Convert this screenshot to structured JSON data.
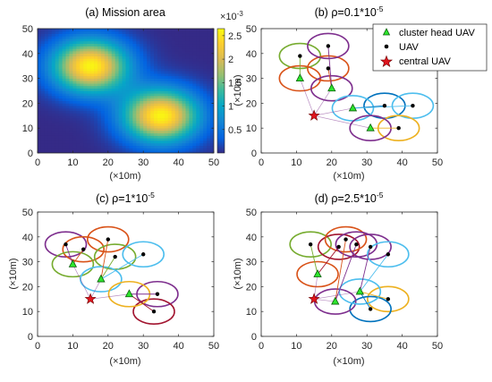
{
  "chart_data": [
    {
      "type": "heatmap",
      "title": "(a) Mission area",
      "xlabel": "(×10m)",
      "ylabel": "",
      "xlim": [
        0,
        50
      ],
      "ylim": [
        0,
        50
      ],
      "xticks": [
        0,
        10,
        20,
        30,
        40,
        50
      ],
      "yticks": [
        0,
        10,
        20,
        30,
        40,
        50
      ],
      "hotspots": [
        {
          "x": 15,
          "y": 35,
          "peak": 2.6
        },
        {
          "x": 35,
          "y": 15,
          "peak": 2.6
        }
      ],
      "colorbar": {
        "multiplier": "×10",
        "exponent": "-3",
        "ticks": [
          0.5,
          1,
          1.5,
          2,
          2.5
        ],
        "range": [
          0.0,
          2.65
        ]
      }
    },
    {
      "type": "scatter",
      "title": "(b) ρ=0.1*10",
      "title_exp": "-5",
      "xlabel": "(×10m)",
      "ylabel": "(×10m)",
      "xlim": [
        0,
        50
      ],
      "ylim": [
        0,
        50
      ],
      "xticks": [
        0,
        10,
        20,
        30,
        40,
        50
      ],
      "yticks": [
        0,
        10,
        20,
        30,
        40,
        50
      ],
      "legend": {
        "placement": "top-right",
        "entries": [
          "cluster head UAV",
          "UAV",
          "central UAV"
        ]
      },
      "central": {
        "x": 15,
        "y": 15
      },
      "heads": [
        {
          "x": 11,
          "y": 30
        },
        {
          "x": 20,
          "y": 26
        },
        {
          "x": 26,
          "y": 18
        },
        {
          "x": 31,
          "y": 10
        }
      ],
      "uavs": [
        {
          "x": 11,
          "y": 39,
          "color": "#77ac30",
          "head": 0
        },
        {
          "x": 19,
          "y": 34,
          "color": "#d95319",
          "head": 1
        },
        {
          "x": 19,
          "y": 43,
          "color": "#7e2f8e",
          "head": 1
        },
        {
          "x": 35,
          "y": 19,
          "color": "#0072bd",
          "head": 2
        },
        {
          "x": 43,
          "y": 19,
          "color": "#4dbeee",
          "head": 2
        },
        {
          "x": 39,
          "y": 10,
          "color": "#edb120",
          "head": 3
        }
      ],
      "head_circles": [
        {
          "head": 0,
          "color": "#d95319"
        },
        {
          "head": 1,
          "color": "#7e2f8e"
        },
        {
          "head": 2,
          "color": "#4dbeee"
        },
        {
          "head": 3,
          "color": "#7e2f8e"
        }
      ]
    },
    {
      "type": "scatter",
      "title": "(c) ρ=1*10",
      "title_exp": "-5",
      "xlabel": "(×10m)",
      "ylabel": "(×10m)",
      "xlim": [
        0,
        50
      ],
      "ylim": [
        0,
        50
      ],
      "xticks": [
        0,
        10,
        20,
        30,
        40,
        50
      ],
      "yticks": [
        0,
        10,
        20,
        30,
        40,
        50
      ],
      "central": {
        "x": 15,
        "y": 15
      },
      "heads": [
        {
          "x": 10,
          "y": 29
        },
        {
          "x": 18,
          "y": 23
        },
        {
          "x": 26,
          "y": 17
        }
      ],
      "uavs": [
        {
          "x": 8,
          "y": 37,
          "color": "#7e2f8e",
          "head": 0
        },
        {
          "x": 13,
          "y": 35,
          "color": "#d95319",
          "head": 0
        },
        {
          "x": 20,
          "y": 39,
          "color": "#d95319",
          "head": 1
        },
        {
          "x": 22,
          "y": 32,
          "color": "#77ac30",
          "head": 1
        },
        {
          "x": 30,
          "y": 33,
          "color": "#4dbeee",
          "head": 1
        },
        {
          "x": 34,
          "y": 17,
          "color": "#7e2f8e",
          "head": 2
        },
        {
          "x": 33,
          "y": 10,
          "color": "#a2142f",
          "head": 2
        }
      ],
      "head_circles": [
        {
          "head": 0,
          "color": "#77ac30"
        },
        {
          "head": 1,
          "color": "#4dbeee"
        },
        {
          "head": 2,
          "color": "#edb120"
        }
      ]
    },
    {
      "type": "scatter",
      "title": "(d) ρ=2.5*10",
      "title_exp": "-5",
      "xlabel": "(×10m)",
      "ylabel": "(×10m)",
      "xlim": [
        0,
        50
      ],
      "ylim": [
        0,
        50
      ],
      "xticks": [
        0,
        10,
        20,
        30,
        40,
        50
      ],
      "yticks": [
        0,
        10,
        20,
        30,
        40,
        50
      ],
      "central": {
        "x": 15,
        "y": 15
      },
      "heads": [
        {
          "x": 16,
          "y": 25
        },
        {
          "x": 21,
          "y": 14
        },
        {
          "x": 28,
          "y": 18
        }
      ],
      "uavs": [
        {
          "x": 14,
          "y": 37,
          "color": "#77ac30",
          "head": 0
        },
        {
          "x": 22,
          "y": 36,
          "color": "#a2142f",
          "head": 0
        },
        {
          "x": 24,
          "y": 39,
          "color": "#d95319",
          "head": 1
        },
        {
          "x": 27,
          "y": 37,
          "color": "#7e2f8e",
          "head": 1
        },
        {
          "x": 31,
          "y": 36,
          "color": "#7e2f8e",
          "head": 2
        },
        {
          "x": 36,
          "y": 33,
          "color": "#4dbeee",
          "head": 2
        },
        {
          "x": 36,
          "y": 15,
          "color": "#edb120",
          "head": 2
        },
        {
          "x": 31,
          "y": 11,
          "color": "#0072bd",
          "head": 2
        }
      ],
      "head_circles": [
        {
          "head": 0,
          "color": "#d95319"
        },
        {
          "head": 1,
          "color": "#7e2f8e"
        },
        {
          "head": 2,
          "color": "#4dbeee"
        }
      ]
    }
  ]
}
